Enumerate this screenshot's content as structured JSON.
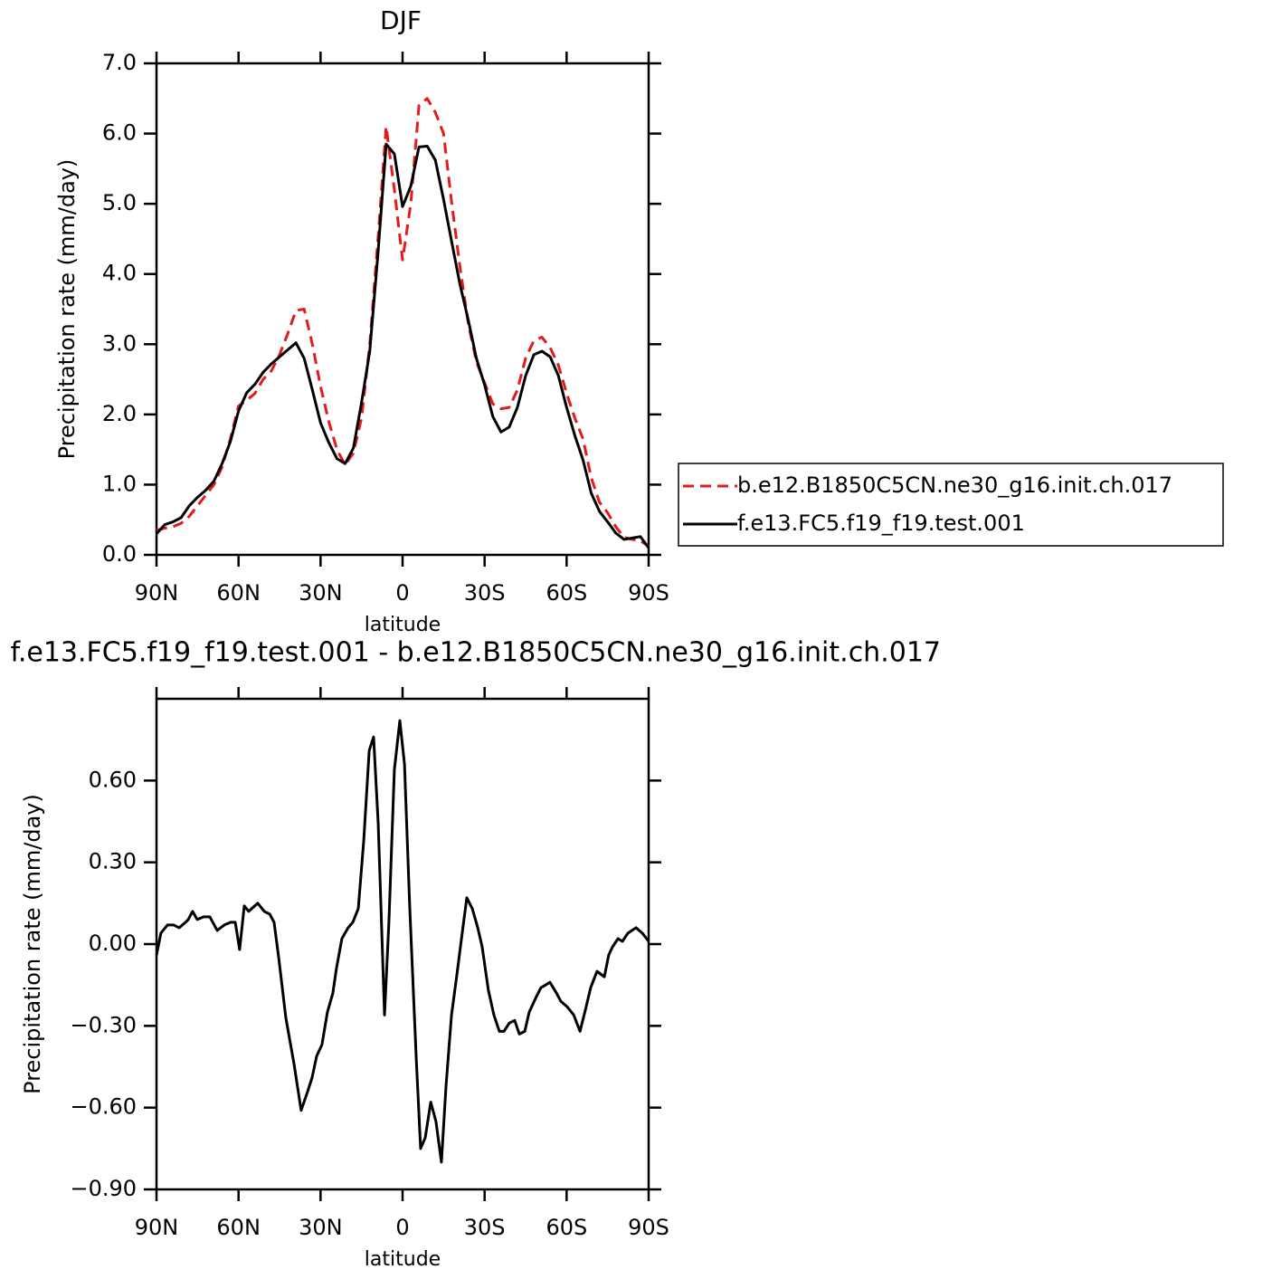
{
  "chart_data": [
    {
      "type": "line",
      "title": "DJF",
      "xlabel": "latitude",
      "ylabel": "Precipitation rate (mm/day)",
      "x": [
        90,
        87,
        84,
        81,
        78,
        75,
        72,
        69,
        66,
        63,
        60,
        57,
        54,
        51,
        48,
        45,
        42,
        39,
        36,
        33,
        30,
        27,
        24,
        21,
        18,
        15,
        12,
        9,
        6,
        3,
        0,
        -3,
        -6,
        -9,
        -12,
        -15,
        -18,
        -21,
        -24,
        -27,
        -30,
        -33,
        -36,
        -39,
        -42,
        -45,
        -48,
        -51,
        -54,
        -57,
        -60,
        -63,
        -66,
        -69,
        -72,
        -75,
        -78,
        -81,
        -84,
        -87,
        -90
      ],
      "xlim": [
        90,
        -90
      ],
      "xticks": [
        {
          "value": 90,
          "label": "90N"
        },
        {
          "value": 60,
          "label": "60N"
        },
        {
          "value": 30,
          "label": "30N"
        },
        0,
        {
          "value": -30,
          "label": "30S"
        },
        {
          "value": -60,
          "label": "60S"
        },
        {
          "value": -90,
          "label": "90S"
        }
      ],
      "ylim": [
        0,
        7
      ],
      "yticks": [
        {
          "value": 0,
          "label": "0.0"
        },
        {
          "value": 1,
          "label": "1.0"
        },
        {
          "value": 2,
          "label": "2.0"
        },
        {
          "value": 3,
          "label": "3.0"
        },
        {
          "value": 4,
          "label": "4.0"
        },
        {
          "value": 5,
          "label": "5.0"
        },
        {
          "value": 6,
          "label": "6.0"
        },
        {
          "value": 7,
          "label": "7.0"
        }
      ],
      "legend": "right",
      "series": [
        {
          "name": "b.e12.B1850C5CN.ne30_g16.init.ch.017",
          "color": "#e41a1c",
          "line_style": "dashed",
          "values": [
            0.35,
            0.38,
            0.4,
            0.45,
            0.55,
            0.7,
            0.85,
            1.0,
            1.25,
            1.65,
            2.12,
            2.2,
            2.3,
            2.5,
            2.62,
            2.85,
            3.15,
            3.48,
            3.5,
            3.0,
            2.4,
            1.9,
            1.5,
            1.28,
            1.45,
            1.95,
            3.0,
            4.5,
            6.1,
            5.2,
            4.2,
            5.0,
            6.4,
            6.5,
            6.3,
            6.0,
            5.0,
            4.1,
            3.3,
            2.75,
            2.45,
            2.15,
            2.08,
            2.1,
            2.35,
            2.8,
            3.05,
            3.1,
            2.95,
            2.7,
            2.3,
            1.95,
            1.65,
            1.1,
            0.75,
            0.6,
            0.4,
            0.25,
            0.22,
            0.2,
            0.12
          ]
        },
        {
          "name": "f.e13.FC5.f19_f19.test.001",
          "color": "#000000",
          "line_style": "solid",
          "values": [
            0.3,
            0.43,
            0.47,
            0.53,
            0.7,
            0.82,
            0.92,
            1.05,
            1.3,
            1.61,
            2.05,
            2.31,
            2.43,
            2.6,
            2.72,
            2.82,
            2.92,
            3.02,
            2.8,
            2.35,
            1.88,
            1.6,
            1.37,
            1.3,
            1.52,
            2.17,
            2.9,
            4.29,
            5.85,
            5.71,
            4.96,
            5.25,
            5.81,
            5.82,
            5.62,
            5.06,
            4.45,
            3.85,
            3.35,
            2.8,
            2.42,
            1.97,
            1.75,
            1.82,
            2.1,
            2.55,
            2.85,
            2.9,
            2.82,
            2.55,
            2.1,
            1.7,
            1.35,
            0.88,
            0.62,
            0.47,
            0.31,
            0.22,
            0.24,
            0.26,
            0.1
          ]
        }
      ]
    },
    {
      "type": "line",
      "title": "f.e13.FC5.f19_f19.test.001 - b.e12.B1850C5CN.ne30_g16.init.ch.017",
      "xlabel": "latitude",
      "ylabel": "Precipitation rate (mm/day)",
      "x": [
        90.0,
        88.4,
        86.0,
        83.7,
        81.7,
        79.4,
        78.4,
        76.8,
        75.1,
        72.8,
        70.5,
        67.8,
        65.2,
        62.9,
        61.2,
        59.6,
        57.9,
        56.3,
        53.0,
        50.6,
        48.6,
        47.0,
        45.3,
        42.7,
        39.7,
        37.1,
        34.7,
        33.1,
        31.4,
        29.5,
        27.5,
        25.5,
        24.2,
        22.2,
        19.9,
        18.2,
        16.2,
        14.2,
        12.2,
        10.6,
        8.9,
        6.6,
        5.0,
        3.0,
        1.0,
        -0.7,
        -2.6,
        -5.0,
        -6.6,
        -8.3,
        -10.3,
        -12.2,
        -14.2,
        -15.9,
        -17.9,
        -19.9,
        -21.8,
        -23.5,
        -25.5,
        -27.5,
        -29.1,
        -31.4,
        -33.4,
        -35.4,
        -37.1,
        -39.0,
        -41.0,
        -42.7,
        -44.7,
        -46.3,
        -48.6,
        -50.6,
        -52.3,
        -53.9,
        -56.3,
        -57.9,
        -60.2,
        -62.6,
        -64.9,
        -66.9,
        -68.8,
        -71.1,
        -73.8,
        -75.4,
        -76.8,
        -78.8,
        -80.4,
        -82.4,
        -85.4,
        -87.7,
        -90.0
      ],
      "values": [
        -0.04,
        0.04,
        0.07,
        0.07,
        0.06,
        0.08,
        0.09,
        0.12,
        0.09,
        0.1,
        0.1,
        0.05,
        0.07,
        0.08,
        0.08,
        -0.02,
        0.14,
        0.12,
        0.15,
        0.12,
        0.11,
        0.08,
        -0.05,
        -0.27,
        -0.44,
        -0.61,
        -0.54,
        -0.49,
        -0.41,
        -0.37,
        -0.25,
        -0.18,
        -0.09,
        0.02,
        0.06,
        0.08,
        0.13,
        0.38,
        0.71,
        0.76,
        0.44,
        -0.26,
        0.08,
        0.64,
        0.82,
        0.66,
        0.14,
        -0.42,
        -0.75,
        -0.71,
        -0.58,
        -0.65,
        -0.8,
        -0.52,
        -0.26,
        -0.11,
        0.04,
        0.17,
        0.13,
        0.06,
        -0.01,
        -0.17,
        -0.26,
        -0.32,
        -0.32,
        -0.29,
        -0.28,
        -0.33,
        -0.32,
        -0.25,
        -0.2,
        -0.16,
        -0.15,
        -0.14,
        -0.18,
        -0.21,
        -0.23,
        -0.26,
        -0.32,
        -0.24,
        -0.16,
        -0.1,
        -0.12,
        -0.04,
        -0.01,
        0.02,
        0.01,
        0.04,
        0.06,
        0.04,
        0.01
      ],
      "color": "#000000",
      "line_style": "solid",
      "xlim": [
        90,
        -90
      ],
      "xticks": [
        {
          "value": 90,
          "label": "90N"
        },
        {
          "value": 60,
          "label": "60N"
        },
        {
          "value": 30,
          "label": "30N"
        },
        0,
        {
          "value": -30,
          "label": "30S"
        },
        {
          "value": -60,
          "label": "60S"
        },
        {
          "value": -90,
          "label": "90S"
        }
      ],
      "ylim": [
        -0.9,
        0.9
      ],
      "yticks": [
        {
          "value": -0.9,
          "label": "−0.90"
        },
        {
          "value": -0.6,
          "label": "−0.60"
        },
        {
          "value": -0.3,
          "label": "−0.30"
        },
        {
          "value": 0,
          "label": "0.00"
        },
        {
          "value": 0.3,
          "label": "0.30"
        },
        {
          "value": 0.6,
          "label": "0.60"
        }
      ]
    }
  ]
}
